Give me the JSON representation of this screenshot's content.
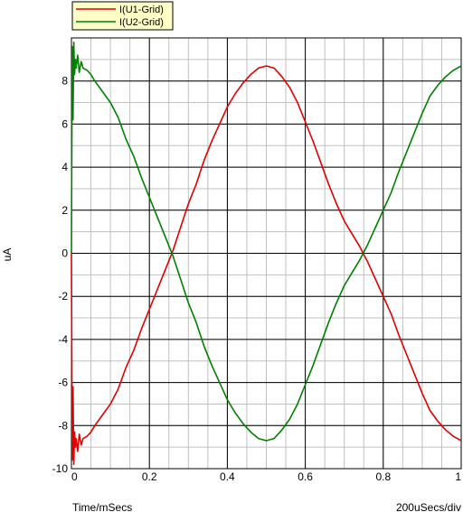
{
  "chart_data": {
    "type": "line",
    "title": "",
    "xlabel": "Time/mSecs",
    "ylabel": "uA",
    "scale_label": "200uSecs/div",
    "xlim": [
      0,
      1
    ],
    "ylim": [
      -10,
      10
    ],
    "x_major_ticks": [
      0,
      0.2,
      0.4,
      0.6,
      0.8,
      1
    ],
    "x_tick_labels": [
      "0",
      "0.2",
      "0.4",
      "0.6",
      "0.8",
      "1"
    ],
    "y_major_ticks": [
      -10,
      -8,
      -6,
      -4,
      -2,
      0,
      2,
      4,
      6,
      8
    ],
    "y_tick_labels": [
      "-10",
      "-8",
      "-6",
      "-4",
      "-2",
      "0",
      "2",
      "4",
      "6",
      "8"
    ],
    "grid": true,
    "legend": "top-left",
    "series": [
      {
        "name": "I(U1-Grid)",
        "color": "#e00000",
        "points": [
          [
            0,
            0
          ],
          [
            0.002,
            -9.6
          ],
          [
            0.004,
            -6.2
          ],
          [
            0.006,
            -9.8
          ],
          [
            0.008,
            -8.3
          ],
          [
            0.01,
            -9.0
          ],
          [
            0.012,
            -8.6
          ],
          [
            0.016,
            -9.2
          ],
          [
            0.02,
            -8.4
          ],
          [
            0.025,
            -8.9
          ],
          [
            0.03,
            -8.6
          ],
          [
            0.04,
            -8.5
          ],
          [
            0.05,
            -8.3
          ],
          [
            0.06,
            -8.0
          ],
          [
            0.08,
            -7.5
          ],
          [
            0.1,
            -7.0
          ],
          [
            0.12,
            -6.3
          ],
          [
            0.14,
            -5.3
          ],
          [
            0.16,
            -4.5
          ],
          [
            0.18,
            -3.5
          ],
          [
            0.2,
            -2.6
          ],
          [
            0.22,
            -1.7
          ],
          [
            0.24,
            -0.8
          ],
          [
            0.26,
            0.1
          ],
          [
            0.28,
            1.2
          ],
          [
            0.3,
            2.3
          ],
          [
            0.32,
            3.2
          ],
          [
            0.34,
            4.3
          ],
          [
            0.36,
            5.2
          ],
          [
            0.38,
            6.0
          ],
          [
            0.4,
            6.8
          ],
          [
            0.42,
            7.4
          ],
          [
            0.44,
            7.9
          ],
          [
            0.46,
            8.3
          ],
          [
            0.48,
            8.6
          ],
          [
            0.5,
            8.7
          ],
          [
            0.52,
            8.6
          ],
          [
            0.54,
            8.2
          ],
          [
            0.56,
            7.7
          ],
          [
            0.58,
            7.0
          ],
          [
            0.6,
            6.1
          ],
          [
            0.62,
            5.2
          ],
          [
            0.64,
            4.2
          ],
          [
            0.66,
            3.2
          ],
          [
            0.68,
            2.3
          ],
          [
            0.7,
            1.5
          ],
          [
            0.72,
            0.9
          ],
          [
            0.74,
            0.3
          ],
          [
            0.76,
            -0.4
          ],
          [
            0.78,
            -1.2
          ],
          [
            0.8,
            -2.0
          ],
          [
            0.82,
            -2.8
          ],
          [
            0.84,
            -3.8
          ],
          [
            0.86,
            -4.7
          ],
          [
            0.88,
            -5.6
          ],
          [
            0.9,
            -6.5
          ],
          [
            0.92,
            -7.3
          ],
          [
            0.94,
            -7.8
          ],
          [
            0.96,
            -8.2
          ],
          [
            0.98,
            -8.5
          ],
          [
            1.0,
            -8.7
          ]
        ]
      },
      {
        "name": "I(U2-Grid)",
        "color": "#008000",
        "points": [
          [
            0,
            0
          ],
          [
            0.002,
            9.6
          ],
          [
            0.004,
            6.2
          ],
          [
            0.006,
            9.8
          ],
          [
            0.008,
            8.3
          ],
          [
            0.01,
            9.0
          ],
          [
            0.012,
            8.6
          ],
          [
            0.016,
            9.2
          ],
          [
            0.02,
            8.4
          ],
          [
            0.025,
            8.9
          ],
          [
            0.03,
            8.6
          ],
          [
            0.04,
            8.5
          ],
          [
            0.05,
            8.3
          ],
          [
            0.06,
            8.0
          ],
          [
            0.08,
            7.5
          ],
          [
            0.1,
            7.0
          ],
          [
            0.12,
            6.3
          ],
          [
            0.14,
            5.3
          ],
          [
            0.16,
            4.5
          ],
          [
            0.18,
            3.5
          ],
          [
            0.2,
            2.6
          ],
          [
            0.22,
            1.7
          ],
          [
            0.24,
            0.8
          ],
          [
            0.26,
            -0.1
          ],
          [
            0.28,
            -1.2
          ],
          [
            0.3,
            -2.3
          ],
          [
            0.32,
            -3.2
          ],
          [
            0.34,
            -4.3
          ],
          [
            0.36,
            -5.2
          ],
          [
            0.38,
            -6.0
          ],
          [
            0.4,
            -6.8
          ],
          [
            0.42,
            -7.4
          ],
          [
            0.44,
            -7.9
          ],
          [
            0.46,
            -8.3
          ],
          [
            0.48,
            -8.6
          ],
          [
            0.5,
            -8.7
          ],
          [
            0.52,
            -8.6
          ],
          [
            0.54,
            -8.2
          ],
          [
            0.56,
            -7.7
          ],
          [
            0.58,
            -7.0
          ],
          [
            0.6,
            -6.1
          ],
          [
            0.62,
            -5.2
          ],
          [
            0.64,
            -4.2
          ],
          [
            0.66,
            -3.2
          ],
          [
            0.68,
            -2.3
          ],
          [
            0.7,
            -1.5
          ],
          [
            0.72,
            -0.9
          ],
          [
            0.74,
            -0.3
          ],
          [
            0.76,
            0.4
          ],
          [
            0.78,
            1.2
          ],
          [
            0.8,
            2.0
          ],
          [
            0.82,
            2.8
          ],
          [
            0.84,
            3.8
          ],
          [
            0.86,
            4.7
          ],
          [
            0.88,
            5.6
          ],
          [
            0.9,
            6.5
          ],
          [
            0.92,
            7.3
          ],
          [
            0.94,
            7.8
          ],
          [
            0.96,
            8.2
          ],
          [
            0.98,
            8.5
          ],
          [
            1.0,
            8.7
          ]
        ]
      }
    ]
  }
}
